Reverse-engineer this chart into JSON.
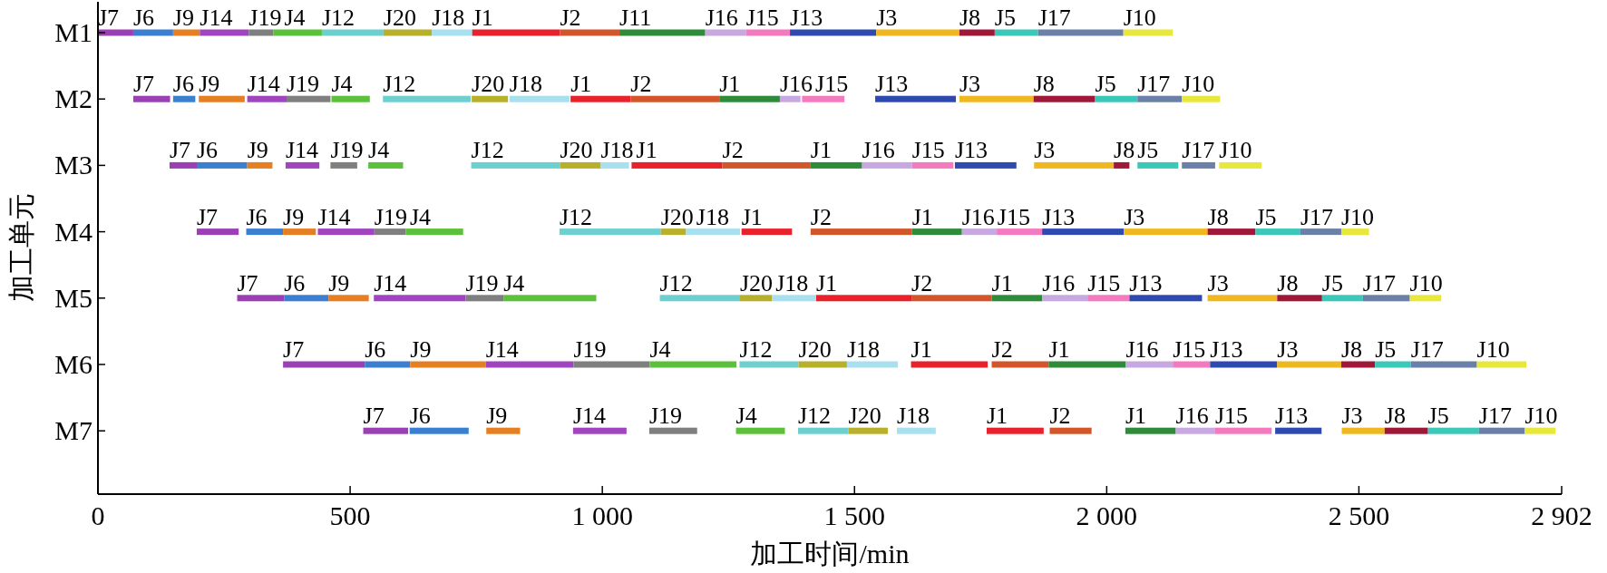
{
  "chart_data": {
    "type": "bar",
    "orientation": "horizontal",
    "xlabel": "加工时间/min",
    "ylabel": "加工单元",
    "categories": [
      "M1",
      "M2",
      "M3",
      "M4",
      "M5",
      "M6",
      "M7"
    ],
    "xlim": [
      0,
      2902
    ],
    "xticks": [
      0,
      500,
      {
        "value": 1000,
        "label": "1 000"
      },
      {
        "value": 1500,
        "label": "1 500"
      },
      {
        "value": 2000,
        "label": "2 000"
      },
      {
        "value": 2500,
        "label": "2 500"
      },
      {
        "value": 2902,
        "label": "2 902"
      }
    ],
    "series": [
      {
        "color": "#9b3fb5",
        "base": [
          0,
          70,
          142,
          196,
          276,
          367,
          526
        ],
        "values": [
          70,
          73,
          54,
          83,
          93,
          162,
          89
        ],
        "value_labels": [
          "J7",
          "J7",
          "J7",
          "J7",
          "J7",
          "J7",
          "J7"
        ]
      },
      {
        "color": "#3a7fd0",
        "base": [
          70,
          149,
          196,
          294,
          369,
          529,
          618
        ],
        "values": [
          79,
          44,
          100,
          73,
          88,
          90,
          117
        ],
        "value_labels": [
          "J6",
          "J6",
          "J6",
          "J6",
          "J6",
          "J6",
          "J6"
        ]
      },
      {
        "color": "#e67e22",
        "base": [
          149,
          200,
          296,
          367,
          457,
          619,
          770
        ],
        "values": [
          53,
          91,
          50,
          65,
          80,
          150,
          67
        ],
        "value_labels": [
          "J9",
          "J9",
          "J9",
          "J9",
          "J9",
          "J9",
          "J9"
        ]
      },
      {
        "color": "#a044c0",
        "base": [
          202,
          296,
          372,
          436,
          547,
          769,
          942
        ],
        "values": [
          97,
          78,
          67,
          112,
          182,
          174,
          106
        ],
        "value_labels": [
          "J14",
          "J14",
          "J14",
          "J14",
          "J14",
          "J14",
          "J14"
        ]
      },
      {
        "color": "#7f7f7f",
        "base": [
          299,
          374,
          461,
          548,
          729,
          943,
          1093
        ],
        "values": [
          49,
          87,
          53,
          62,
          75,
          151,
          95
        ],
        "value_labels": [
          "J19",
          "J19",
          "J19",
          "J19",
          "J19",
          "J19",
          "J19"
        ]
      },
      {
        "color": "#5cc13a",
        "base": [
          348,
          463,
          536,
          610,
          804,
          1094,
          1265
        ],
        "values": [
          96,
          76,
          69,
          114,
          184,
          172,
          97
        ],
        "value_labels": [
          "J4",
          "J4",
          "J4",
          "J4",
          "J4",
          "J4",
          "J4"
        ]
      },
      {
        "color": "#6dcfcf",
        "base": [
          444,
          565,
          740,
          915,
          1114,
          1272,
          1388
        ],
        "values": [
          122,
          174,
          176,
          201,
          159,
          117,
          100
        ],
        "value_labels": [
          "J12",
          "J12",
          "J12",
          "J12",
          "J12",
          "J12",
          "J12"
        ]
      },
      {
        "color": "#b8b02a",
        "base": [
          566,
          741,
          916,
          1116,
          1273,
          1389,
          1488
        ],
        "values": [
          96,
          72,
          81,
          50,
          63,
          96,
          78
        ],
        "value_labels": [
          "J20",
          "J20",
          "J20",
          "J20",
          "J20",
          "J20",
          "J20"
        ]
      },
      {
        "color": "#a8e0f0",
        "base": [
          662,
          816,
          997,
          1166,
          1336,
          1485,
          1584
        ],
        "values": [
          80,
          119,
          56,
          107,
          88,
          101,
          77
        ],
        "value_labels": [
          "J18",
          "J18",
          "J18",
          "J18",
          "J18",
          "J18",
          "J18"
        ]
      },
      {
        "color": "#e8212a",
        "base": [
          742,
          937,
          1058,
          1276,
          1424,
          1612,
          1762
        ],
        "values": [
          174,
          119,
          180,
          100,
          189,
          152,
          113
        ],
        "value_labels": [
          "J1",
          "J1",
          "J1",
          "J1",
          "J1",
          "J1",
          "J1"
        ]
      },
      {
        "color": "#d2562a",
        "base": [
          916,
          1056,
          1238,
          1413,
          1613,
          1772,
          1887
        ],
        "values": [
          118,
          176,
          175,
          201,
          159,
          113,
          83
        ],
        "value_labels": [
          "J2",
          "J2",
          "J2",
          "J2",
          "J2",
          "J2",
          "J2"
        ]
      },
      {
        "color": "#2e8b3a",
        "base": [
          1034,
          1232,
          1413,
          1614,
          1772,
          1885,
          2037
        ],
        "values": [
          170,
          120,
          102,
          99,
          100,
          153,
          100
        ],
        "value_labels": [
          "J11",
          "J1",
          "J1",
          "J1",
          "J1",
          "J1",
          "J1"
        ]
      },
      {
        "color": "#c8a8e0",
        "base": [
          1204,
          1352,
          1515,
          1713,
          1872,
          2038,
          2137
        ],
        "values": [
          81,
          41,
          99,
          69,
          90,
          93,
          78
        ],
        "value_labels": [
          "J16",
          "J16",
          "J16",
          "J16",
          "J16",
          "J16",
          "J16"
        ]
      },
      {
        "color": "#f47ac0",
        "base": [
          1285,
          1396,
          1614,
          1782,
          1962,
          2131,
          2215
        ],
        "values": [
          87,
          84,
          82,
          90,
          83,
          74,
          112
        ],
        "value_labels": [
          "J15",
          "J15",
          "J15",
          "J15",
          "J15",
          "J15",
          "J15"
        ]
      },
      {
        "color": "#2e4ab0",
        "base": [
          1372,
          1541,
          1699,
          1872,
          2045,
          2205,
          2334
        ],
        "values": [
          171,
          160,
          122,
          162,
          144,
          133,
          92
        ],
        "value_labels": [
          "J13",
          "J13",
          "J13",
          "J13",
          "J13",
          "J13",
          "J13"
        ]
      },
      {
        "color": "#f0b820",
        "base": [
          1543,
          1708,
          1856,
          2034,
          2200,
          2338,
          2466
        ],
        "values": [
          165,
          147,
          158,
          166,
          138,
          127,
          85
        ],
        "value_labels": [
          "J3",
          "J3",
          "J3",
          "J3",
          "J3",
          "J3",
          "J3"
        ]
      },
      {
        "color": "#a01838",
        "base": [
          1708,
          1855,
          2014,
          2200,
          2338,
          2465,
          2551
        ],
        "values": [
          70,
          122,
          31,
          95,
          89,
          67,
          86
        ],
        "value_labels": [
          "J8",
          "J8",
          "J8",
          "J8",
          "J8",
          "J8",
          "J8"
        ]
      },
      {
        "color": "#3cc8b8",
        "base": [
          1778,
          1977,
          2061,
          2295,
          2427,
          2532,
          2637
        ],
        "values": [
          86,
          84,
          81,
          89,
          81,
          71,
          101
        ],
        "value_labels": [
          "J5",
          "J5",
          "J5",
          "J5",
          "J5",
          "J5",
          "J5"
        ]
      },
      {
        "color": "#6a80a8",
        "base": [
          1864,
          2061,
          2149,
          2384,
          2508,
          2603,
          2738
        ],
        "values": [
          169,
          88,
          66,
          81,
          93,
          131,
          91
        ],
        "value_labels": [
          "J17",
          "J17",
          "J17",
          "J17",
          "J17",
          "J17",
          "J17"
        ]
      },
      {
        "color": "#e8e83c",
        "base": [
          2033,
          2149,
          2223,
          2465,
          2601,
          2734,
          2829
        ],
        "values": [
          98,
          76,
          84,
          55,
          62,
          98,
          61
        ],
        "value_labels": [
          "J10",
          "J10",
          "J10",
          "J10",
          "J10",
          "J10",
          "J10"
        ]
      }
    ]
  }
}
